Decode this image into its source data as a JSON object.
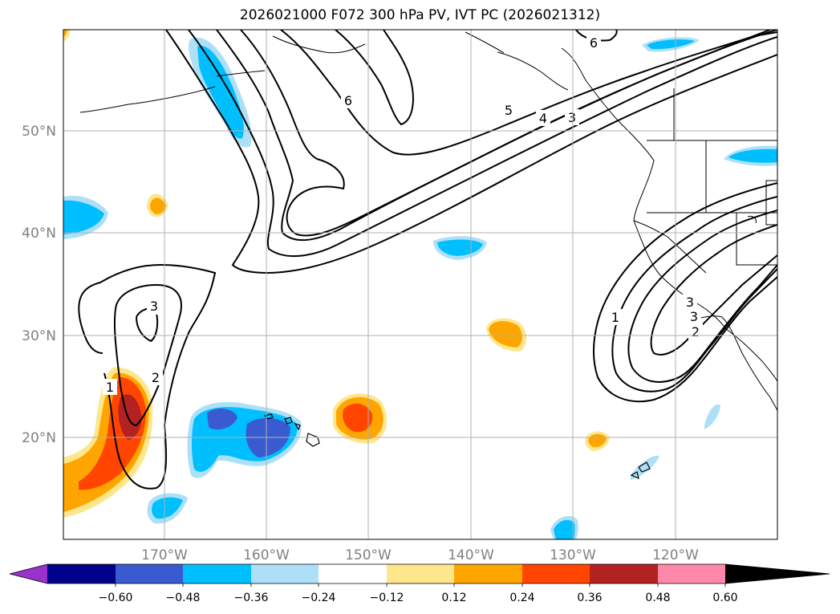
{
  "title": "2026021000 F072 300 hPa PV, IVT PC (2026021312)",
  "axes": {
    "lat_labels": [
      "50°N",
      "40°N",
      "30°N",
      "20°N"
    ],
    "lon_labels": [
      "170°W",
      "160°W",
      "150°W",
      "140°W",
      "130°W",
      "120°W"
    ]
  },
  "colorbar": {
    "ticks": [
      "−0.60",
      "−0.48",
      "−0.36",
      "−0.24",
      "−0.12",
      "0.12",
      "0.24",
      "0.36",
      "0.48",
      "0.60"
    ],
    "colors": [
      "#9932cc",
      "#00008b",
      "#3a5bd0",
      "#00bfff",
      "#ade0f7",
      "#ffffff",
      "#fde68c",
      "#ffa500",
      "#ff4500",
      "#b22222",
      "#ff88aa"
    ]
  },
  "contour_labels": [
    "6",
    "5",
    "4",
    "3",
    "6",
    "3",
    "2",
    "1",
    "1",
    "2",
    "3",
    "3"
  ]
}
